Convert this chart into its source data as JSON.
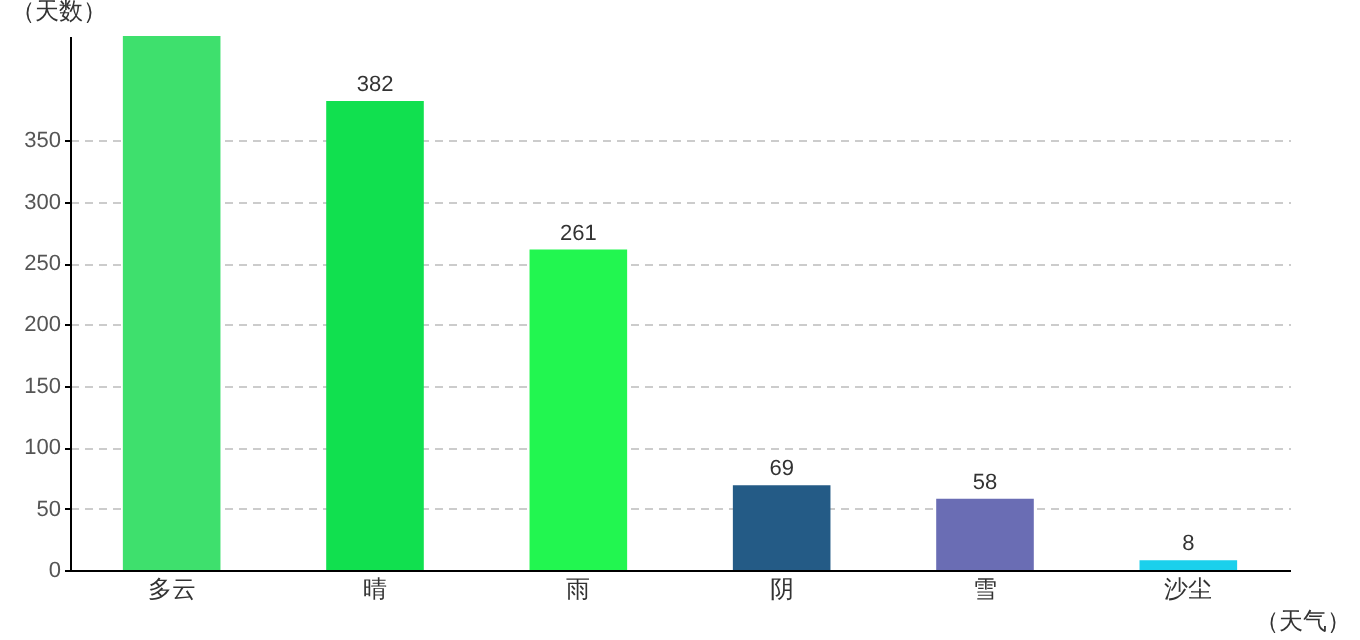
{
  "chart_data": {
    "type": "bar",
    "xlabel": "（天气）",
    "ylabel": "（天数）",
    "categories": [
      "多云",
      "晴",
      "雨",
      "阴",
      "雪",
      "沙尘"
    ],
    "values": [
      435,
      382,
      261,
      69,
      58,
      8
    ],
    "colors": [
      "#3ee06d",
      "#11e04f",
      "#22f650",
      "#245b86",
      "#6a6db4",
      "#1ad0ec"
    ],
    "value_labels": [
      null,
      "382",
      "261",
      "69",
      "58",
      "8"
    ],
    "ylim": [
      0,
      435
    ],
    "yticks": [
      0,
      50,
      100,
      150,
      200,
      250,
      300,
      350
    ],
    "grid": "y"
  }
}
